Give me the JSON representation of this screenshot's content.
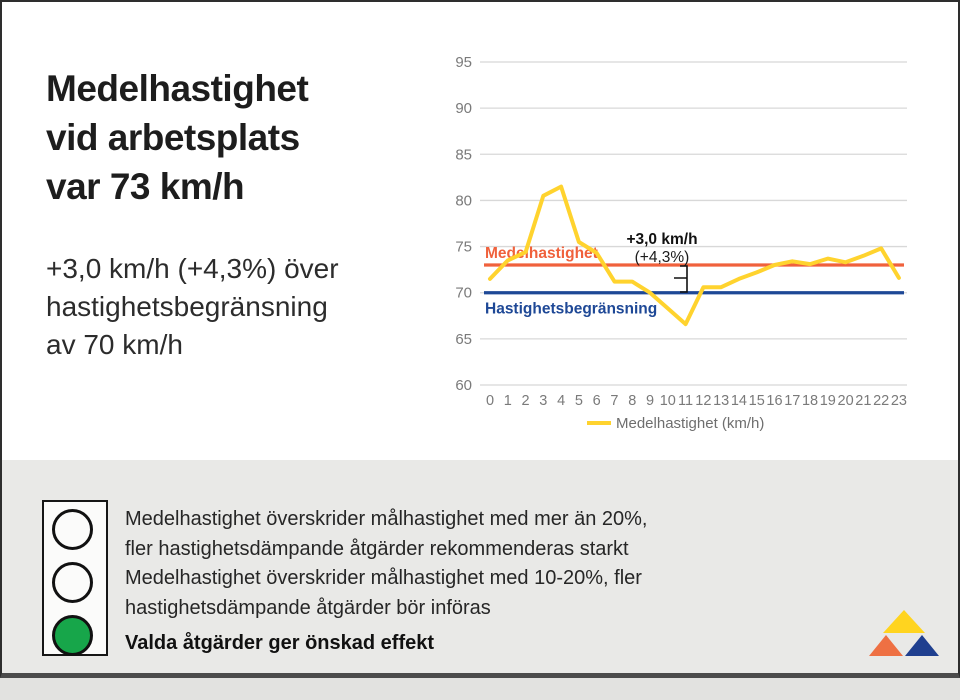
{
  "header": {
    "title_lines": [
      "Medelhastighet",
      "vid arbetsplats",
      "var 73 km/h"
    ],
    "subtitle_lines": [
      "+3,0 km/h (+4,3%) över",
      "hastighetsbegränsning",
      "av 70 km/h"
    ]
  },
  "chart_data": {
    "type": "line",
    "title": "",
    "xlabel": "",
    "ylabel": "",
    "ylim": [
      60,
      95
    ],
    "grid": true,
    "yticks": [
      95,
      90,
      85,
      80,
      75,
      70,
      65,
      60
    ],
    "xticks": [
      "0",
      "1",
      "2",
      "3",
      "4",
      "5",
      "6",
      "7",
      "8",
      "9",
      "10",
      "11",
      "12",
      "13",
      "14",
      "15",
      "16",
      "17",
      "18",
      "19",
      "20",
      "21",
      "22",
      "23"
    ],
    "series": [
      {
        "name": "Medelhastighet (km/h)",
        "color": "#FFD32E",
        "values": [
          71.5,
          73.5,
          74.4,
          80.5,
          81.5,
          75.5,
          74.3,
          71.2,
          71.2,
          70.0,
          68.3,
          66.6,
          70.6,
          70.6,
          71.5,
          72.2,
          73.0,
          73.4,
          73.1,
          73.7,
          73.3,
          74.0,
          74.8,
          71.6
        ]
      }
    ],
    "reference_lines": [
      {
        "label": "Medelhastighet",
        "value": 73,
        "color": "#F0613C"
      },
      {
        "label": "Hastighetsbegränsning",
        "value": 70,
        "color": "#1E4896"
      }
    ],
    "annotation": {
      "line1": "+3,0 km/h",
      "line2": "(+4,3%)"
    },
    "legend": {
      "label": "Medelhastighet (km/h)",
      "position": "bottom-center"
    }
  },
  "legend_panel": {
    "items": [
      {
        "level": "red",
        "circle_fill": "#fbfbfa",
        "bold": false,
        "lines": [
          "Medelhastighet överskrider målhastighet med mer än 20%,",
          "fler hastighetsdämpande åtgärder rekommenderas starkt"
        ]
      },
      {
        "level": "yellow",
        "circle_fill": "#fbfbfa",
        "bold": false,
        "lines": [
          "Medelhastighet överskrider målhastighet med 10-20%, fler",
          "hastighetsdämpande åtgärder bör införas"
        ]
      },
      {
        "level": "green",
        "circle_fill": "#17A64A",
        "bold": true,
        "lines": [
          "Valda åtgärder ger önskad effekt"
        ]
      }
    ]
  },
  "logo": {
    "colors": {
      "top": "#FFD41F",
      "left": "#EE7043",
      "right": "#1F3F8F"
    }
  }
}
